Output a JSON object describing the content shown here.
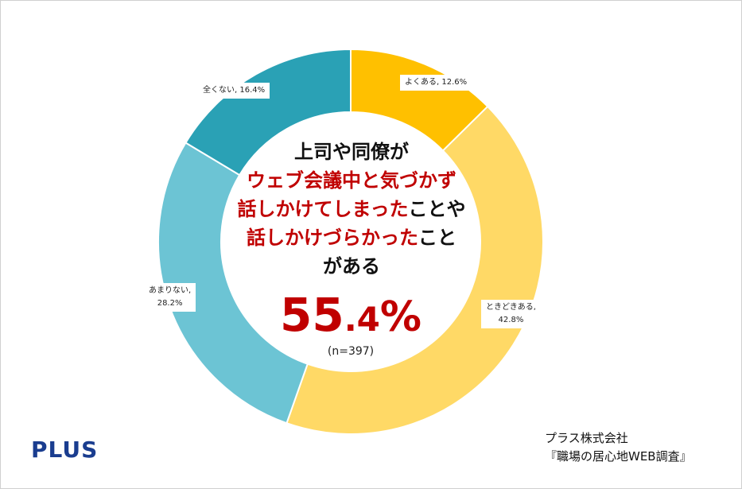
{
  "chart_data": {
    "type": "pie",
    "categories": [
      "よくある",
      "ときどきある",
      "あまりない",
      "全くない"
    ],
    "values": [
      12.6,
      42.8,
      28.2,
      16.4
    ],
    "colors": [
      "#ffc000",
      "#ffd966",
      "#6cc4d4",
      "#2aa1b5"
    ],
    "labels": [
      {
        "line1": "よくある, 12.6%",
        "line2": ""
      },
      {
        "line1": "ときどきある,",
        "line2": "42.8%"
      },
      {
        "line1": "あまりない,",
        "line2": "28.2%"
      },
      {
        "line1": "全くない, 16.4%",
        "line2": ""
      }
    ]
  },
  "center": {
    "line1": "上司や同僚が",
    "line2": "ウェブ会議中と気づかず",
    "line3_red": "話しかけてしまった",
    "line3_black": "ことや",
    "line4_red": "話しかけづらかった",
    "line4_black": "こと",
    "line5": "がある",
    "big_int": "55",
    "big_dec": ".4",
    "big_pct": "%",
    "sample": "(n=397)"
  },
  "logo": "PLUS",
  "source": {
    "line1": "プラス株式会社",
    "line2": "『職場の居心地WEB調査』"
  }
}
